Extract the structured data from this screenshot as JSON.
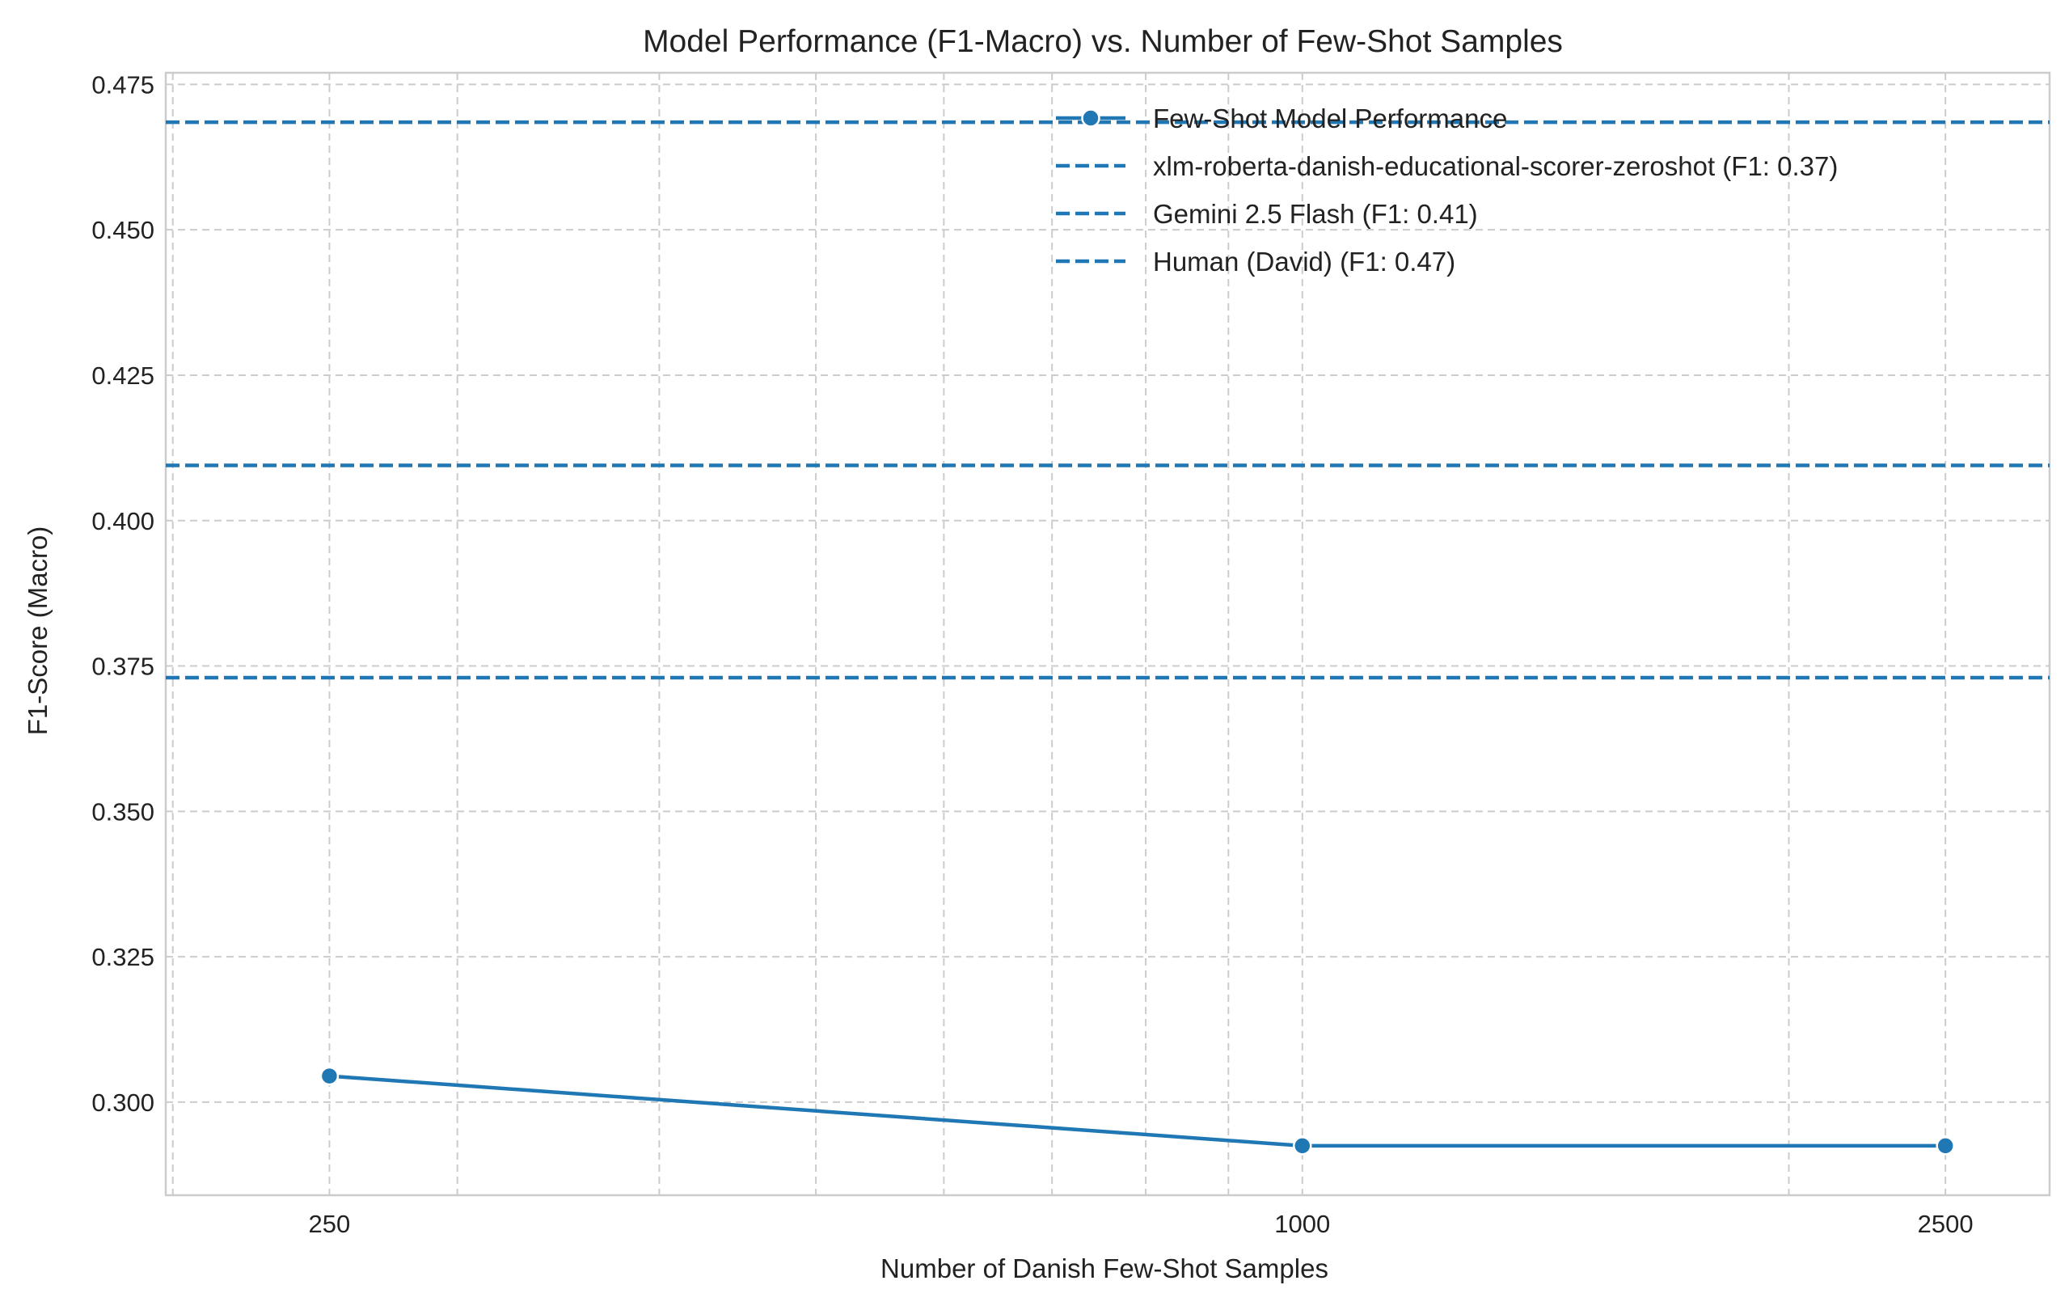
{
  "chart_data": {
    "type": "line",
    "title": "Model Performance (F1-Macro) vs. Number of Few-Shot Samples",
    "xlabel": "Number of Danish Few-Shot Samples",
    "ylabel": "F1-Score (Macro)",
    "x_scale": "log",
    "xlim": [
      198,
      2900
    ],
    "ylim": [
      0.284,
      0.477
    ],
    "x_ticks": [
      250,
      1000,
      2500
    ],
    "x_tick_labels": [
      "250",
      "1000",
      "2500"
    ],
    "y_ticks": [
      0.3,
      0.325,
      0.35,
      0.375,
      0.4,
      0.425,
      0.45,
      0.475
    ],
    "y_tick_labels": [
      "0.300",
      "0.325",
      "0.350",
      "0.375",
      "0.400",
      "0.425",
      "0.450",
      "0.475"
    ],
    "grid": true,
    "legend_position": "top-right",
    "series": [
      {
        "name": "Few-Shot Model Performance",
        "style": "solid-line-with-markers",
        "color": "#1f77b4",
        "x": [
          250,
          1000,
          2500
        ],
        "y": [
          0.3045,
          0.2925,
          0.2925
        ]
      }
    ],
    "reference_lines": [
      {
        "name": "xlm-roberta-danish-educational-scorer-zeroshot (F1: 0.37)",
        "y": 0.373,
        "style": "dashed",
        "color": "#1f77b4"
      },
      {
        "name": "Gemini 2.5 Flash (F1: 0.41)",
        "y": 0.4095,
        "style": "dashed",
        "color": "#1f77b4"
      },
      {
        "name": "Human (David) (F1: 0.47)",
        "y": 0.4685,
        "style": "dashed",
        "color": "#1f77b4"
      }
    ]
  }
}
